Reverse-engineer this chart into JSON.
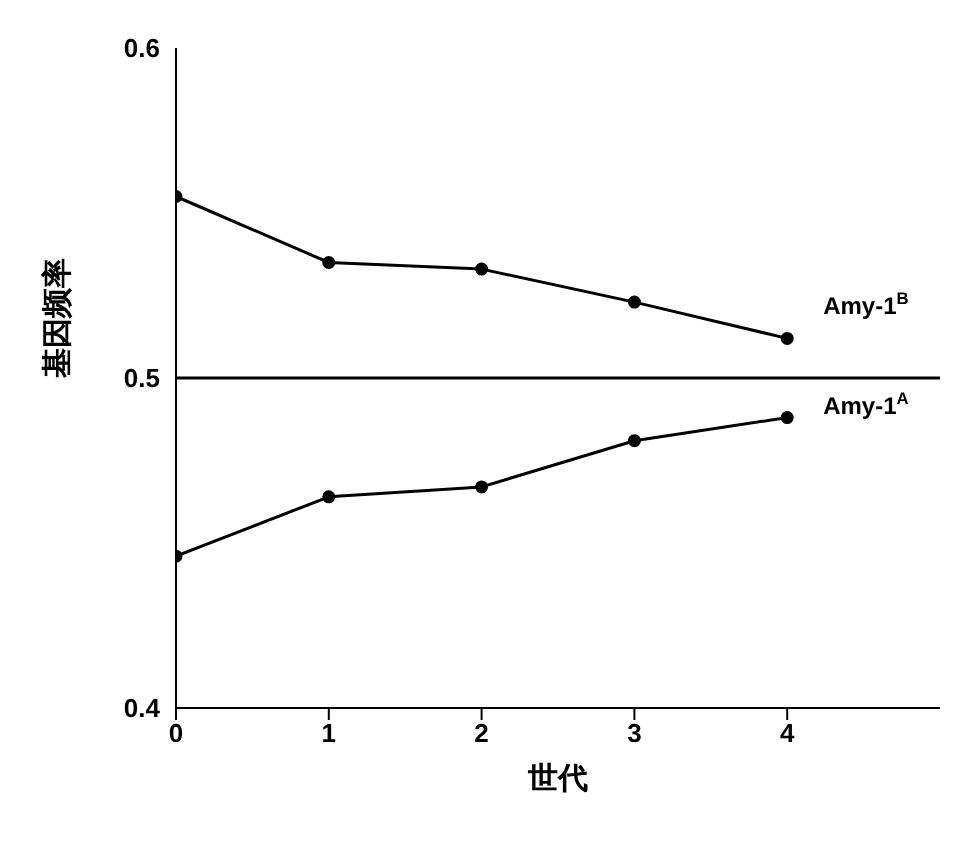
{
  "chart_data": {
    "type": "line",
    "xlabel": "世代",
    "ylabel": "基因频率",
    "x": [
      0,
      1,
      2,
      3,
      4
    ],
    "xlim": [
      0,
      5
    ],
    "xticks": [
      0,
      1,
      2,
      3,
      4
    ],
    "ylim": [
      0.4,
      0.6
    ],
    "yticks": [
      0.4,
      0.5,
      0.6
    ],
    "grid": false,
    "legend": false,
    "marker": "circle",
    "line_style": "solid",
    "series": [
      {
        "name": "Amy-1$^{B}$",
        "color": "#000000",
        "values": [
          0.555,
          0.535,
          0.533,
          0.523,
          0.512
        ]
      },
      {
        "name": "Amy-1$^{A}$",
        "color": "#000000",
        "values": [
          0.446,
          0.464,
          0.467,
          0.481,
          0.488
        ]
      }
    ],
    "ref_lines": [
      {
        "axis": "y",
        "value": 0.5,
        "color": "#000000",
        "line_style": "solid"
      }
    ]
  }
}
